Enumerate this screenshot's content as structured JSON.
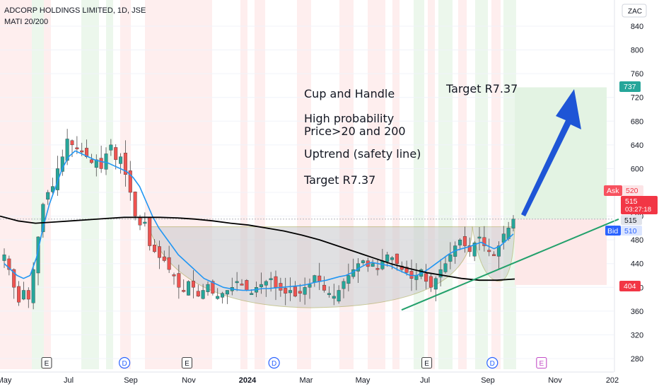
{
  "header": {
    "title": "ADCORP HOLDINGS LIMITED, 1D, JSE",
    "indicator": "MATI 20/200",
    "scale_label": "ZAC"
  },
  "price_badges": {
    "ask_label": "Ask",
    "ask_value": "520",
    "last_value": "515",
    "countdown": "03:27:18",
    "level_value": "515",
    "bid_label": "Bid",
    "bid_value": "510",
    "target_value": "737",
    "stop_value": "404"
  },
  "annotations": {
    "pattern": "Cup and Handle",
    "probability_1": "High probability",
    "probability_2": "Price>20 and 200",
    "trend": "Uptrend (safety line)",
    "target_body": "Target R7.37",
    "target_top": "Target R7.37"
  },
  "event_markers": [
    {
      "label": "E",
      "kind": "earnings",
      "x": "2023-06-10"
    },
    {
      "label": "D",
      "kind": "dividend",
      "x": "2023-08-25"
    },
    {
      "label": "E",
      "kind": "earnings",
      "x": "2023-10-25"
    },
    {
      "label": "D",
      "kind": "dividend",
      "x": "2024-01-18"
    },
    {
      "label": "E",
      "kind": "earnings",
      "x": "2024-06-15"
    },
    {
      "label": "D",
      "kind": "dividend",
      "x": "2024-08-18"
    },
    {
      "label": "E",
      "kind": "upcoming",
      "x": "2024-10-05"
    }
  ],
  "colors": {
    "up": "#26a69a",
    "down": "#ef5350",
    "ma20": "#2196f3",
    "ma200": "#000000",
    "trendline": "#22a06b",
    "arrow": "#1e55d6",
    "target_box": "#e3f3e3",
    "stop_box": "#fde8e8",
    "target_badge": "#26a69a",
    "stop_badge": "#f23645",
    "bid_badge": "#2962ff"
  },
  "chart_data": {
    "type": "candlestick",
    "x_axis": {
      "ticks": [
        "May",
        "Jul",
        "Sep",
        "Nov",
        "2024",
        "Mar",
        "May",
        "Jul",
        "Sep",
        "Nov",
        "202"
      ]
    },
    "y_axis": {
      "ticks": [
        280,
        320,
        360,
        400,
        440,
        480,
        520,
        560,
        600,
        640,
        680,
        720,
        760,
        800,
        840
      ],
      "range": [
        260,
        870
      ],
      "side": "right"
    },
    "series": [
      {
        "name": "price",
        "kind": "candles",
        "approx_closes": [
          455,
          430,
          400,
          375,
          395,
          380,
          430,
          485,
          540,
          560,
          570,
          600,
          620,
          650,
          640,
          635,
          630,
          620,
          610,
          615,
          600,
          625,
          640,
          615,
          620,
          590,
          560,
          520,
          505,
          510,
          470,
          460,
          450,
          445,
          430,
          420,
          400,
          395,
          410,
          400,
          385,
          395,
          405,
          390,
          385,
          390,
          395,
          400,
          410,
          405,
          395,
          390,
          400,
          405,
          410,
          415,
          400,
          395,
          390,
          395,
          385,
          390,
          400,
          405,
          420,
          410,
          395,
          390,
          385,
          395,
          410,
          420,
          430,
          440,
          445,
          435,
          440,
          430,
          445,
          455,
          450,
          440,
          430,
          425,
          415,
          420,
          430,
          410,
          400,
          415,
          430,
          440,
          455,
          470,
          480,
          470,
          460,
          475,
          485,
          470,
          460,
          455,
          470,
          490,
          500,
          515
        ]
      },
      {
        "name": "MA 20",
        "kind": "line",
        "approx_values": [
          440,
          430,
          420,
          415,
          420,
          450,
          500,
          540,
          570,
          600,
          620,
          630,
          625,
          620,
          615,
          612,
          610,
          605,
          600,
          595,
          585,
          570,
          545,
          520,
          500,
          485,
          470,
          455,
          445,
          435,
          425,
          415,
          410,
          405,
          400,
          398,
          396,
          395,
          395,
          396,
          398,
          398,
          399,
          400,
          401,
          402,
          403,
          405,
          408,
          410,
          412,
          415,
          418,
          420,
          425,
          432,
          438,
          442,
          440,
          438,
          436,
          430,
          425,
          420,
          420,
          425,
          432,
          440,
          448,
          456,
          462,
          465,
          468,
          472,
          476,
          470,
          465,
          470,
          480,
          490
        ]
      },
      {
        "name": "MA 200",
        "kind": "line",
        "approx_values": [
          520,
          512,
          508,
          510,
          512,
          514,
          516,
          518,
          518,
          518,
          517,
          515,
          512,
          508,
          505,
          500,
          495,
          488,
          480,
          470,
          460,
          450,
          440,
          432,
          425,
          420,
          415,
          412,
          412,
          414
        ]
      }
    ],
    "pattern": {
      "name": "Cup and Handle",
      "neckline": 502,
      "cup_bottom": 380
    },
    "trendline": {
      "from": {
        "x": "2024-06-01",
        "y": 362
      },
      "to": {
        "x": "2024-12-15",
        "y": 515
      }
    },
    "position": {
      "entry": 515,
      "target": 737,
      "stop": 404
    },
    "background": "alternating green/red vertical bands by MATI regime"
  }
}
